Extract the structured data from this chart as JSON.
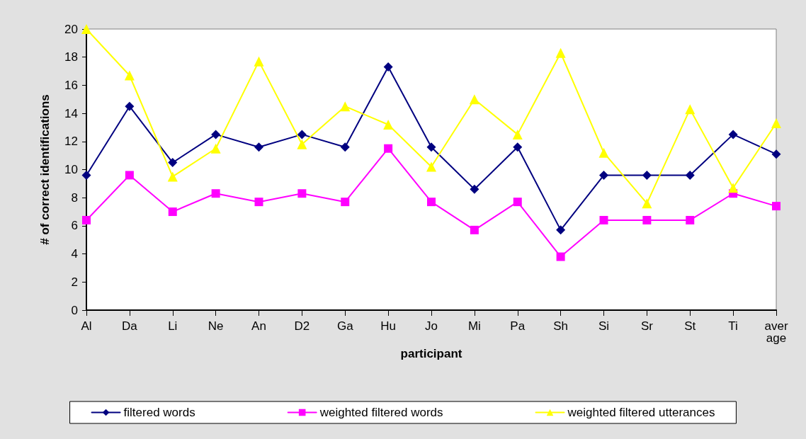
{
  "chart_data": {
    "type": "line",
    "xlabel": "participant",
    "ylabel": "# of correct identifications",
    "categories": [
      "Al",
      "Da",
      "Li",
      "Ne",
      "An",
      "D2",
      "Ga",
      "Hu",
      "Jo",
      "Mi",
      "Pa",
      "Sh",
      "Si",
      "Sr",
      "St",
      "Ti",
      "average"
    ],
    "series": [
      {
        "name": "filtered words",
        "color": "#000080",
        "marker": "diamond",
        "values": [
          9.6,
          14.5,
          10.5,
          12.5,
          11.6,
          12.5,
          11.6,
          17.3,
          11.6,
          8.6,
          11.6,
          5.7,
          9.6,
          9.6,
          9.6,
          12.5,
          11.1
        ]
      },
      {
        "name": "weighted filtered words",
        "color": "#ff00ff",
        "marker": "square",
        "values": [
          6.4,
          9.6,
          7.0,
          8.3,
          7.7,
          8.3,
          7.7,
          11.5,
          7.7,
          5.7,
          7.7,
          3.8,
          6.4,
          6.4,
          6.4,
          8.3,
          7.4
        ]
      },
      {
        "name": "weighted filtered utterances",
        "color": "#ffff00",
        "marker": "triangle",
        "values": [
          20,
          16.7,
          9.5,
          11.5,
          17.7,
          11.8,
          14.5,
          13.2,
          10.2,
          15.0,
          12.5,
          18.3,
          11.2,
          7.6,
          14.3,
          8.7,
          13.3
        ]
      }
    ],
    "ylim": [
      0,
      20
    ],
    "yticks": [
      0,
      2,
      4,
      6,
      8,
      10,
      12,
      14,
      16,
      18,
      20
    ],
    "grid": false,
    "legend": "bottom",
    "line_style": "solid"
  }
}
